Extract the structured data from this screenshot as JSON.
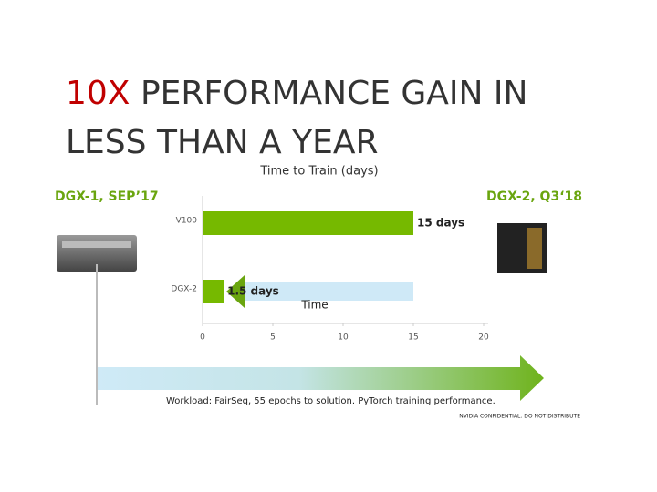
{
  "slide": {
    "title_accent": "10X",
    "title_line1": "PERFORMANCE GAIN IN",
    "title_line2": "LESS THAN A YEAR",
    "left_label": "DGX-1, SEP’17",
    "right_label": "DGX-2, Q3‘18",
    "arrow_label": "Time",
    "footnote": "Workload: FairSeq, 55 epochs to solution. PyTorch training performance.",
    "confidential": "NVIDIA CONFIDENTIAL. DO NOT DISTRIBUTE"
  },
  "chart_data": {
    "type": "bar",
    "orientation": "horizontal",
    "title": "Time to Train (days)",
    "categories": [
      "V100",
      "DGX-2"
    ],
    "values": [
      15,
      1.5
    ],
    "value_labels": [
      "15 days",
      "1.5 days"
    ],
    "color": "#76b900",
    "xlim": [
      0,
      20
    ],
    "xticks": [
      0,
      5,
      10,
      15,
      20
    ],
    "grid": false
  }
}
